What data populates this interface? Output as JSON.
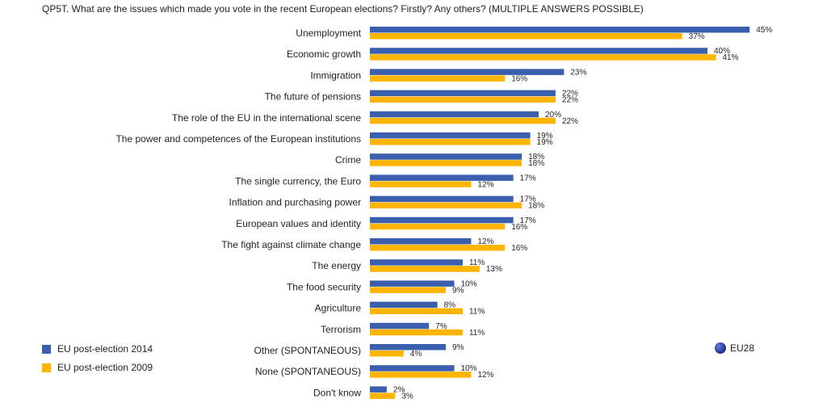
{
  "question": "QP5T. What are the issues which made you vote in the recent European elections? Firstly? Any others? (MULTIPLE ANSWERS POSSIBLE)",
  "legend": {
    "series_2014": "EU post-election 2014",
    "series_2009": "EU post-election 2009"
  },
  "badge": {
    "label": "EU28",
    "icon": "globe-icon"
  },
  "colors": {
    "series_2014": "#3a5fad",
    "series_2009": "#ffb400"
  },
  "chart_data": {
    "type": "bar",
    "orientation": "horizontal",
    "title": "",
    "unit": "%",
    "xlim": [
      0,
      45
    ],
    "grid": false,
    "legend_position": "bottom-left",
    "categories": [
      "Unemployment",
      "Economic growth",
      "Immigration",
      "The future of pensions",
      "The role of the EU in the international scene",
      "The power and competences of the European institutions",
      "Crime",
      "The single currency, the Euro",
      "Inflation and purchasing power",
      "European values and identity",
      "The fight against climate change",
      "The energy",
      "The food security",
      "Agriculture",
      "Terrorism",
      "Other (SPONTANEOUS)",
      "None (SPONTANEOUS)",
      "Don't know"
    ],
    "series": [
      {
        "name": "EU post-election 2014",
        "values": [
          45,
          40,
          23,
          22,
          20,
          19,
          18,
          17,
          17,
          17,
          12,
          11,
          10,
          8,
          7,
          9,
          10,
          2
        ]
      },
      {
        "name": "EU post-election 2009",
        "values": [
          37,
          41,
          16,
          22,
          22,
          19,
          18,
          12,
          18,
          16,
          16,
          13,
          9,
          11,
          11,
          4,
          12,
          3
        ]
      }
    ]
  }
}
